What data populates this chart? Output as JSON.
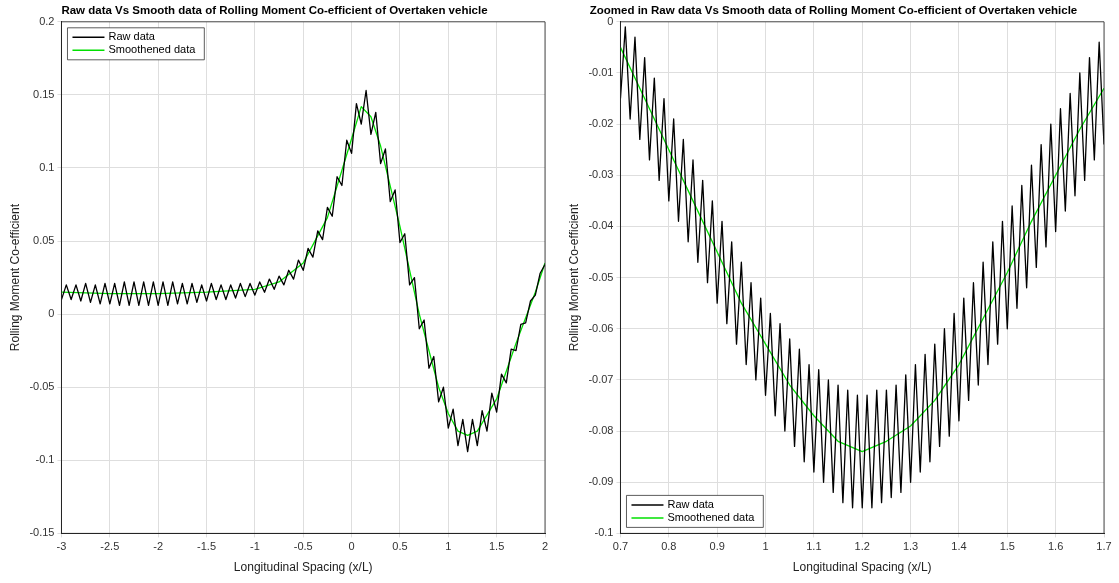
{
  "chart_data": [
    {
      "type": "line",
      "title": "Raw data Vs Smooth data of Rolling Moment Co-efficient of Overtaken vehicle",
      "xlabel": "Longitudinal Spacing (x/L)",
      "ylabel": "Rolling Moment Co-efficient",
      "xlim": [
        -3,
        2
      ],
      "xticks": [
        -3,
        -2.5,
        -2,
        -1.5,
        -1,
        -0.5,
        0,
        0.5,
        1,
        1.5,
        2
      ],
      "ylim": [
        -0.15,
        0.2
      ],
      "yticks": [
        -0.15,
        -0.1,
        -0.05,
        0,
        0.05,
        0.1,
        0.15,
        0.2
      ],
      "grid": true,
      "legend": "top left",
      "marker": "none",
      "line_style": "solid",
      "series": [
        {
          "name": "Raw data",
          "color": "#000000",
          "x": [
            -3,
            -2.95,
            -2.9,
            -2.85,
            -2.8,
            -2.75,
            -2.7,
            -2.65,
            -2.6,
            -2.55,
            -2.5,
            -2.45,
            -2.4,
            -2.35,
            -2.3,
            -2.25,
            -2.2,
            -2.15,
            -2.1,
            -2.05,
            -2,
            -1.95,
            -1.9,
            -1.85,
            -1.8,
            -1.75,
            -1.7,
            -1.65,
            -1.6,
            -1.55,
            -1.5,
            -1.45,
            -1.4,
            -1.35,
            -1.3,
            -1.25,
            -1.2,
            -1.15,
            -1.1,
            -1.05,
            -1,
            -0.95,
            -0.9,
            -0.85,
            -0.8,
            -0.75,
            -0.7,
            -0.65,
            -0.6,
            -0.55,
            -0.5,
            -0.45,
            -0.4,
            -0.35,
            -0.3,
            -0.25,
            -0.2,
            -0.15,
            -0.1,
            -0.05,
            0,
            0.05,
            0.1,
            0.15,
            0.2,
            0.25,
            0.3,
            0.35,
            0.4,
            0.45,
            0.5,
            0.55,
            0.6,
            0.65,
            0.7,
            0.75,
            0.8,
            0.85,
            0.9,
            0.95,
            1,
            1.05,
            1.1,
            1.15,
            1.2,
            1.25,
            1.3,
            1.35,
            1.4,
            1.45,
            1.5,
            1.55,
            1.6,
            1.65,
            1.7,
            1.75,
            1.8,
            1.85,
            1.9,
            1.95,
            2
          ],
          "values": [
            0.01,
            0.02,
            0.01,
            0.02,
            0.009,
            0.021,
            0.008,
            0.02,
            0.007,
            0.021,
            0.007,
            0.021,
            0.006,
            0.022,
            0.006,
            0.022,
            0.006,
            0.022,
            0.006,
            0.022,
            0.006,
            0.022,
            0.006,
            0.022,
            0.007,
            0.021,
            0.007,
            0.021,
            0.008,
            0.02,
            0.009,
            0.021,
            0.01,
            0.02,
            0.01,
            0.02,
            0.011,
            0.021,
            0.012,
            0.021,
            0.013,
            0.022,
            0.015,
            0.024,
            0.017,
            0.026,
            0.02,
            0.03,
            0.024,
            0.037,
            0.03,
            0.045,
            0.039,
            0.057,
            0.051,
            0.073,
            0.067,
            0.094,
            0.088,
            0.119,
            0.11,
            0.144,
            0.13,
            0.153,
            0.123,
            0.138,
            0.103,
            0.113,
            0.077,
            0.085,
            0.049,
            0.055,
            0.02,
            0.025,
            -0.01,
            -0.004,
            -0.037,
            -0.029,
            -0.06,
            -0.05,
            -0.078,
            -0.065,
            -0.09,
            -0.072,
            -0.094,
            -0.072,
            -0.09,
            -0.066,
            -0.08,
            -0.054,
            -0.067,
            -0.041,
            -0.047,
            -0.024,
            -0.025,
            -0.007,
            -0.006,
            0.009,
            0.013,
            0.028,
            0.034
          ]
        },
        {
          "name": "Smoothened data",
          "color": "#00e000",
          "x": [
            -3,
            -2.5,
            -2,
            -1.5,
            -1,
            -0.75,
            -0.5,
            -0.25,
            0,
            0.1,
            0.2,
            0.3,
            0.5,
            0.7,
            0.9,
            1,
            1.1,
            1.2,
            1.3,
            1.5,
            1.7,
            1.9,
            2
          ],
          "values": [
            0.015,
            0.014,
            0.014,
            0.015,
            0.017,
            0.022,
            0.035,
            0.066,
            0.12,
            0.142,
            0.135,
            0.115,
            0.06,
            0,
            -0.05,
            -0.068,
            -0.08,
            -0.083,
            -0.08,
            -0.058,
            -0.02,
            0.015,
            0.035
          ]
        }
      ]
    },
    {
      "type": "line",
      "title": "Zoomed in Raw data Vs Smooth data of Rolling Moment Co-efficient of Overtaken vehicle",
      "xlabel": "Longitudinal Spacing (x/L)",
      "ylabel": "Rolling Moment Co-efficient",
      "xlim": [
        0.7,
        1.7
      ],
      "xticks": [
        0.7,
        0.8,
        0.9,
        1,
        1.1,
        1.2,
        1.3,
        1.4,
        1.5,
        1.6,
        1.7
      ],
      "ylim": [
        -0.1,
        0
      ],
      "yticks": [
        -0.1,
        -0.09,
        -0.08,
        -0.07,
        -0.06,
        -0.05,
        -0.04,
        -0.03,
        -0.02,
        -0.01,
        0
      ],
      "grid": true,
      "legend": "bottom left",
      "marker": "none",
      "line_style": "solid",
      "series": [
        {
          "name": "Raw data",
          "color": "#000000",
          "x": [
            0.7,
            0.71,
            0.72,
            0.73,
            0.74,
            0.75,
            0.76,
            0.77,
            0.78,
            0.79,
            0.8,
            0.81,
            0.82,
            0.83,
            0.84,
            0.85,
            0.86,
            0.87,
            0.88,
            0.89,
            0.9,
            0.91,
            0.92,
            0.93,
            0.94,
            0.95,
            0.96,
            0.97,
            0.98,
            0.99,
            1,
            1.01,
            1.02,
            1.03,
            1.04,
            1.05,
            1.06,
            1.07,
            1.08,
            1.09,
            1.1,
            1.11,
            1.12,
            1.13,
            1.14,
            1.15,
            1.16,
            1.17,
            1.18,
            1.19,
            1.2,
            1.21,
            1.22,
            1.23,
            1.24,
            1.25,
            1.26,
            1.27,
            1.28,
            1.29,
            1.3,
            1.31,
            1.32,
            1.33,
            1.34,
            1.35,
            1.36,
            1.37,
            1.38,
            1.39,
            1.4,
            1.41,
            1.42,
            1.43,
            1.44,
            1.45,
            1.46,
            1.47,
            1.48,
            1.49,
            1.5,
            1.51,
            1.52,
            1.53,
            1.54,
            1.55,
            1.56,
            1.57,
            1.58,
            1.59,
            1.6,
            1.61,
            1.62,
            1.63,
            1.64,
            1.65,
            1.66,
            1.67,
            1.68,
            1.69,
            1.7
          ],
          "values": [
            -0.015,
            -0.001,
            -0.019,
            -0.003,
            -0.023,
            -0.007,
            -0.027,
            -0.011,
            -0.031,
            -0.015,
            -0.035,
            -0.019,
            -0.039,
            -0.023,
            -0.043,
            -0.027,
            -0.047,
            -0.031,
            -0.051,
            -0.035,
            -0.055,
            -0.039,
            -0.059,
            -0.043,
            -0.063,
            -0.047,
            -0.067,
            -0.051,
            -0.07,
            -0.054,
            -0.073,
            -0.057,
            -0.077,
            -0.059,
            -0.08,
            -0.062,
            -0.083,
            -0.064,
            -0.086,
            -0.067,
            -0.088,
            -0.068,
            -0.09,
            -0.07,
            -0.092,
            -0.071,
            -0.094,
            -0.072,
            -0.095,
            -0.073,
            -0.095,
            -0.073,
            -0.095,
            -0.072,
            -0.094,
            -0.072,
            -0.093,
            -0.071,
            -0.092,
            -0.069,
            -0.09,
            -0.067,
            -0.088,
            -0.065,
            -0.086,
            -0.063,
            -0.083,
            -0.06,
            -0.081,
            -0.057,
            -0.078,
            -0.054,
            -0.074,
            -0.051,
            -0.071,
            -0.047,
            -0.067,
            -0.043,
            -0.063,
            -0.039,
            -0.06,
            -0.036,
            -0.056,
            -0.032,
            -0.052,
            -0.028,
            -0.048,
            -0.024,
            -0.044,
            -0.02,
            -0.041,
            -0.017,
            -0.037,
            -0.014,
            -0.034,
            -0.01,
            -0.031,
            -0.007,
            -0.027,
            -0.004,
            -0.024
          ]
        },
        {
          "name": "Smoothened data",
          "color": "#00e000",
          "x": [
            0.7,
            0.75,
            0.8,
            0.85,
            0.9,
            0.95,
            1,
            1.05,
            1.1,
            1.15,
            1.2,
            1.25,
            1.3,
            1.35,
            1.4,
            1.45,
            1.5,
            1.55,
            1.6,
            1.65,
            1.7
          ],
          "values": [
            -0.005,
            -0.015,
            -0.025,
            -0.035,
            -0.045,
            -0.055,
            -0.063,
            -0.071,
            -0.077,
            -0.082,
            -0.084,
            -0.082,
            -0.079,
            -0.074,
            -0.067,
            -0.058,
            -0.049,
            -0.039,
            -0.03,
            -0.021,
            -0.013
          ]
        }
      ]
    }
  ]
}
